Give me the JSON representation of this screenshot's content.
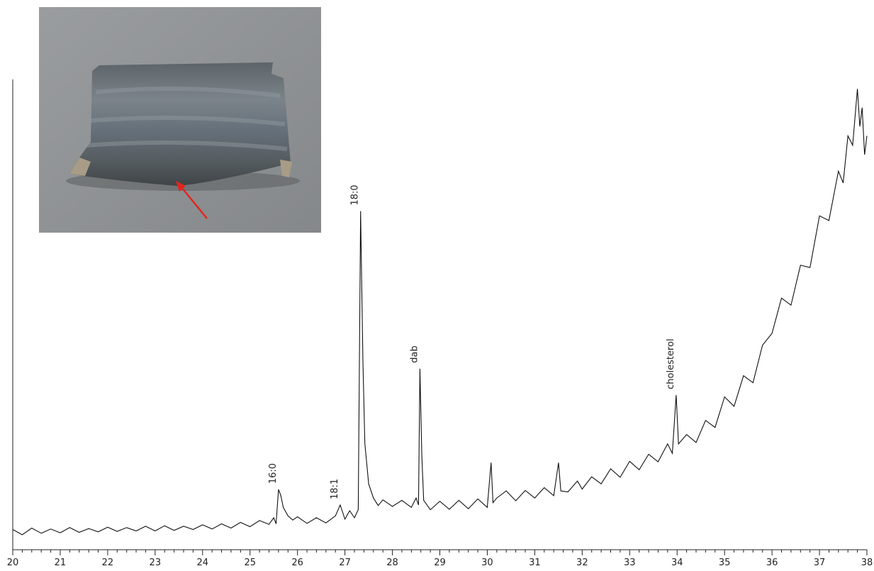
{
  "chart_data": {
    "type": "line",
    "x": [
      20,
      20.2,
      20.4,
      20.6,
      20.8,
      21,
      21.2,
      21.4,
      21.6,
      21.8,
      22,
      22.2,
      22.4,
      22.6,
      22.8,
      23,
      23.2,
      23.4,
      23.6,
      23.8,
      24,
      24.2,
      24.4,
      24.6,
      24.8,
      25,
      25.2,
      25.4,
      25.5,
      25.55,
      25.6,
      25.65,
      25.7,
      25.8,
      25.9,
      26,
      26.2,
      26.4,
      26.6,
      26.8,
      26.9,
      26.95,
      27,
      27.1,
      27.2,
      27.28,
      27.33,
      27.38,
      27.42,
      27.5,
      27.6,
      27.7,
      27.8,
      28,
      28.2,
      28.4,
      28.5,
      28.55,
      28.58,
      28.62,
      28.66,
      28.8,
      29,
      29.2,
      29.4,
      29.6,
      29.8,
      30,
      30.08,
      30.12,
      30.2,
      30.4,
      30.6,
      30.8,
      31,
      31.2,
      31.4,
      31.5,
      31.55,
      31.7,
      31.9,
      32,
      32.2,
      32.4,
      32.6,
      32.8,
      33,
      33.2,
      33.4,
      33.6,
      33.8,
      33.9,
      33.98,
      34.03,
      34.2,
      34.4,
      34.6,
      34.8,
      35,
      35.2,
      35.4,
      35.6,
      35.8,
      36,
      36.2,
      36.4,
      36.6,
      36.8,
      37,
      37.2,
      37.4,
      37.5,
      37.6,
      37.7,
      37.8,
      37.85,
      37.9,
      37.95,
      38
    ],
    "values": [
      4.3,
      3.2,
      4.6,
      3.5,
      4.4,
      3.6,
      4.7,
      3.7,
      4.5,
      3.8,
      4.8,
      3.9,
      4.7,
      4.0,
      5.0,
      4.0,
      5.1,
      4.1,
      5.0,
      4.3,
      5.3,
      4.4,
      5.5,
      4.6,
      5.8,
      4.9,
      6.2,
      5.4,
      6.8,
      5.5,
      12.8,
      11.5,
      9,
      7.2,
      6.3,
      7.0,
      5.6,
      6.8,
      5.7,
      7.2,
      9.5,
      8.0,
      6.5,
      8.3,
      6.8,
      8.5,
      72,
      40,
      22.6,
      14,
      11,
      9.4,
      10.6,
      9.2,
      10.5,
      9.0,
      11,
      9.5,
      38.5,
      20,
      10.5,
      8.5,
      10.3,
      8.6,
      10.5,
      8.7,
      10.8,
      9.0,
      18.5,
      10,
      11.0,
      12.5,
      10.4,
      12.6,
      11.0,
      13.2,
      11.5,
      18.5,
      12.5,
      12.3,
      14.6,
      12.9,
      15.5,
      14.0,
      17.2,
      15.4,
      18.8,
      17.0,
      20.3,
      18.7,
      22.5,
      20.5,
      32.9,
      22.5,
      24.5,
      22.8,
      27.5,
      26.0,
      32.5,
      30.5,
      37.0,
      35.5,
      43.5,
      46.0,
      53.5,
      52.0,
      60.5,
      60.0,
      71.0,
      70.0,
      80.5,
      78.0,
      88.0,
      86.0,
      98.0,
      90,
      94.0,
      84.0,
      88.0
    ],
    "color": "#111111",
    "xlim": [
      20,
      38
    ],
    "ylim": [
      0,
      100
    ],
    "xticks": [
      20,
      21,
      22,
      23,
      24,
      25,
      26,
      27,
      28,
      29,
      30,
      31,
      32,
      33,
      34,
      35,
      36,
      37,
      38
    ],
    "xminorticks": [
      20.2,
      20.4,
      20.6,
      20.8,
      21.2,
      21.4,
      21.6,
      21.8,
      22.2,
      22.4,
      22.6,
      22.8,
      23.2,
      23.4,
      23.6,
      23.8,
      24.2,
      24.4,
      24.6,
      24.8,
      25.2,
      25.4,
      25.6,
      25.8,
      26.2,
      26.4,
      26.6,
      26.8,
      27.2,
      27.4,
      27.6,
      27.8,
      28.2,
      28.4,
      28.6,
      28.8,
      29.2,
      29.4,
      29.6,
      29.8,
      30.2,
      30.4,
      30.6,
      30.8,
      31.2,
      31.4,
      31.6,
      31.8,
      32.2,
      32.4,
      32.6,
      32.8,
      33.2,
      33.4,
      33.6,
      33.8,
      34.2,
      34.4,
      34.6,
      34.8,
      35.2,
      35.4,
      35.6,
      35.8,
      36.2,
      36.4,
      36.6,
      36.8,
      37.2,
      37.4,
      37.6,
      37.8
    ],
    "annotations": [
      {
        "text": "16:0",
        "x": 25.6
      },
      {
        "text": "18:1",
        "x": 26.9
      },
      {
        "text": "18:0",
        "x": 27.33
      },
      {
        "text": "dab",
        "x": 28.58
      },
      {
        "text": "cholesterol",
        "x": 33.98
      }
    ]
  }
}
